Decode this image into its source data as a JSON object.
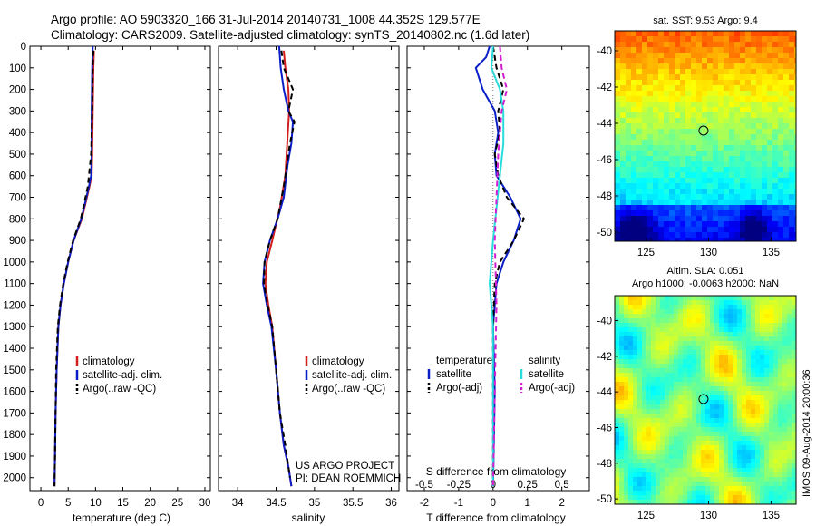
{
  "header": {
    "title_line1": "Argo profile: AO 5903320_166 31-Jul-2014 20140731_1008 44.352S 129.577E",
    "title_line2": "Climatology: CARS2009. Satellite-adjusted climatology: synTS_20140802.nc (1.6d later)"
  },
  "watermark": "IMOS 09-Aug-2014 20:00:36",
  "colors": {
    "climatology": "#d21e1e",
    "satellite": "#0a1ec8",
    "argo": "#000000",
    "salinity_satellite": "#28dcdc",
    "salinity_argo": "#d21ed2"
  },
  "chart_data": [
    {
      "id": "temperature",
      "type": "line",
      "xlabel": "temperature (deg C)",
      "ylabel": "",
      "xlim": [
        -2,
        31
      ],
      "ylim": [
        2060,
        0
      ],
      "xticks": [
        0,
        5,
        10,
        15,
        20,
        25,
        30
      ],
      "yticks": [
        0,
        100,
        200,
        300,
        400,
        500,
        600,
        700,
        800,
        900,
        1000,
        1100,
        1200,
        1300,
        1400,
        1500,
        1600,
        1700,
        1800,
        1900,
        2000
      ],
      "legend": [
        "climatology",
        "satellite-adj. clim.",
        "Argo(..raw -QC)"
      ],
      "series": [
        {
          "name": "climatology",
          "style": "solid",
          "color": "#d21e1e",
          "x": [
            9.7,
            9.6,
            9.5,
            9.4,
            9.3,
            8.9,
            7.5,
            6.0,
            5.0,
            4.2,
            3.6,
            3.2,
            2.9,
            2.7,
            2.6,
            2.5
          ],
          "y": [
            20,
            100,
            300,
            500,
            600,
            650,
            800,
            900,
            1000,
            1100,
            1200,
            1300,
            1500,
            1700,
            1900,
            2040
          ]
        },
        {
          "name": "satellite-adj. clim.",
          "style": "solid",
          "color": "#0a1ec8",
          "x": [
            9.5,
            9.4,
            9.3,
            9.3,
            9.2,
            8.8,
            7.4,
            6.0,
            5.0,
            4.2,
            3.6,
            3.2,
            2.9,
            2.7,
            2.6,
            2.5
          ],
          "y": [
            0,
            100,
            300,
            500,
            600,
            650,
            800,
            900,
            1000,
            1100,
            1200,
            1300,
            1500,
            1700,
            1900,
            2040
          ]
        },
        {
          "name": "Argo(..raw -QC)",
          "style": "dashed",
          "color": "#000000",
          "x": [
            9.6,
            9.5,
            9.4,
            9.2,
            8.6,
            7.3,
            5.9,
            4.9,
            4.1,
            3.5,
            3.1,
            2.8,
            2.7,
            2.6,
            2.5
          ],
          "y": [
            20,
            100,
            300,
            500,
            650,
            800,
            900,
            1000,
            1100,
            1200,
            1300,
            1500,
            1700,
            1900,
            2040
          ]
        }
      ]
    },
    {
      "id": "salinity",
      "type": "line",
      "xlabel": "salinity",
      "ylabel": "",
      "xlim": [
        33.75,
        36.1
      ],
      "ylim": [
        2060,
        0
      ],
      "xticks": [
        34,
        34.5,
        35,
        35.5,
        36
      ],
      "legend": [
        "climatology",
        "satellite-adj. clim.",
        "Argo(..raw -QC)"
      ],
      "annotation": [
        "US ARGO PROJECT",
        "PI: DEAN ROEMMICH"
      ],
      "series": [
        {
          "name": "climatology",
          "style": "solid",
          "color": "#d21e1e",
          "x": [
            34.6,
            34.62,
            34.66,
            34.67,
            34.65,
            34.62,
            34.55,
            34.45,
            34.38,
            34.36,
            34.4,
            34.45,
            34.5,
            34.55,
            34.6,
            34.66,
            34.7
          ],
          "y": [
            20,
            100,
            200,
            300,
            420,
            600,
            750,
            900,
            1000,
            1100,
            1200,
            1300,
            1500,
            1700,
            1850,
            1950,
            2040
          ]
        },
        {
          "name": "satellite-adj. clim.",
          "style": "solid",
          "color": "#0a1ec8",
          "x": [
            34.54,
            34.56,
            34.6,
            34.66,
            34.72,
            34.7,
            34.65,
            34.6,
            34.52,
            34.42,
            34.35,
            34.33,
            34.38,
            34.44,
            34.5,
            34.55,
            34.6,
            34.66,
            34.7
          ],
          "y": [
            0,
            100,
            200,
            300,
            350,
            450,
            550,
            700,
            800,
            900,
            1000,
            1100,
            1200,
            1300,
            1500,
            1700,
            1850,
            1950,
            2040
          ]
        },
        {
          "name": "Argo(..raw -QC)",
          "style": "dashed",
          "color": "#000000",
          "x": [
            34.57,
            34.6,
            34.72,
            34.66,
            34.74,
            34.68,
            34.6,
            34.52,
            34.42,
            34.35,
            34.34,
            34.39,
            34.45,
            34.5,
            34.55,
            34.62,
            34.68
          ],
          "y": [
            20,
            100,
            200,
            300,
            350,
            450,
            650,
            800,
            900,
            1000,
            1100,
            1200,
            1300,
            1500,
            1700,
            1850,
            2000
          ]
        }
      ]
    },
    {
      "id": "differences",
      "type": "line",
      "xlabel": "T difference from climatology",
      "xlabel_top": "S difference from climatology",
      "xlim": [
        -2.5,
        2.8
      ],
      "ylim": [
        2060,
        0
      ],
      "xticks": [
        -2,
        -1,
        0,
        1,
        2
      ],
      "xtick_labels": [
        "-2",
        "-1",
        "0",
        "1",
        "2"
      ],
      "top_tick_labels": [
        "-0.5",
        "-0.25",
        "0",
        "0.25",
        "0.5"
      ],
      "legend": {
        "temperature_header": "temperature",
        "salinity_header": "salinity",
        "temperature_items": [
          "satellite",
          "Argo(-adj)"
        ],
        "salinity_items": [
          "satellite",
          "Argo(-adj)"
        ]
      },
      "series": [
        {
          "name": "T satellite",
          "style": "solid",
          "color": "#0a1ec8",
          "x": [
            -0.1,
            -0.2,
            -0.5,
            -0.3,
            0.05,
            0.15,
            0.05,
            0.1,
            0.5,
            0.8,
            0.6,
            0.3,
            0.1,
            0.0,
            0.05,
            0.0
          ],
          "y": [
            0,
            50,
            100,
            200,
            300,
            400,
            500,
            600,
            700,
            800,
            900,
            1000,
            1100,
            1300,
            1600,
            2040
          ]
        },
        {
          "name": "T Argo(-adj)",
          "style": "dashed",
          "color": "#000000",
          "x": [
            0.0,
            0.1,
            0.3,
            0.15,
            0.2,
            0.05,
            0.15,
            0.4,
            0.9,
            0.6,
            0.2,
            0.05,
            0.0,
            0.0
          ],
          "y": [
            0,
            100,
            200,
            300,
            400,
            500,
            600,
            700,
            800,
            900,
            1000,
            1100,
            1300,
            2040
          ]
        },
        {
          "name": "S satellite",
          "style": "solid",
          "color": "#28dcdc",
          "x": [
            0.0,
            -0.05,
            0.2,
            0.3,
            0.3,
            0.2,
            0.1,
            0.0,
            -0.05,
            -0.1,
            -0.05,
            0.0,
            0.0
          ],
          "y": [
            0,
            100,
            200,
            300,
            450,
            600,
            750,
            900,
            1000,
            1100,
            1200,
            1300,
            2040
          ]
        },
        {
          "name": "S Argo(-adj)",
          "style": "dashed",
          "color": "#d21ed2",
          "x": [
            0.2,
            0.25,
            0.4,
            0.25,
            0.15,
            0.1,
            0.05,
            0.1,
            0.05,
            0.0
          ],
          "y": [
            0,
            100,
            200,
            300,
            500,
            700,
            900,
            1200,
            1600,
            2040
          ]
        }
      ]
    },
    {
      "id": "sst_map",
      "type": "heatmap",
      "title": "sat. SST: 9.53  Argo: 9.4",
      "xlim": [
        122.5,
        137
      ],
      "ylim": [
        -50.5,
        -38.9
      ],
      "xticks": [
        125,
        130,
        135
      ],
      "yticks": [
        -40,
        -42,
        -44,
        -46,
        -48,
        -50
      ],
      "marker": {
        "lon": 129.6,
        "lat": -44.4
      }
    },
    {
      "id": "sla_map",
      "type": "heatmap",
      "title_line1": "Altim. SLA: 0.051",
      "title_line2": "Argo h1000: -0.0063  h2000: NaN",
      "xlim": [
        122.5,
        137
      ],
      "ylim": [
        -50.3,
        -38.6
      ],
      "xticks": [
        125,
        130,
        135
      ],
      "yticks": [
        -40,
        -42,
        -44,
        -46,
        -48,
        -50
      ],
      "marker": {
        "lon": 129.6,
        "lat": -44.4
      }
    }
  ]
}
